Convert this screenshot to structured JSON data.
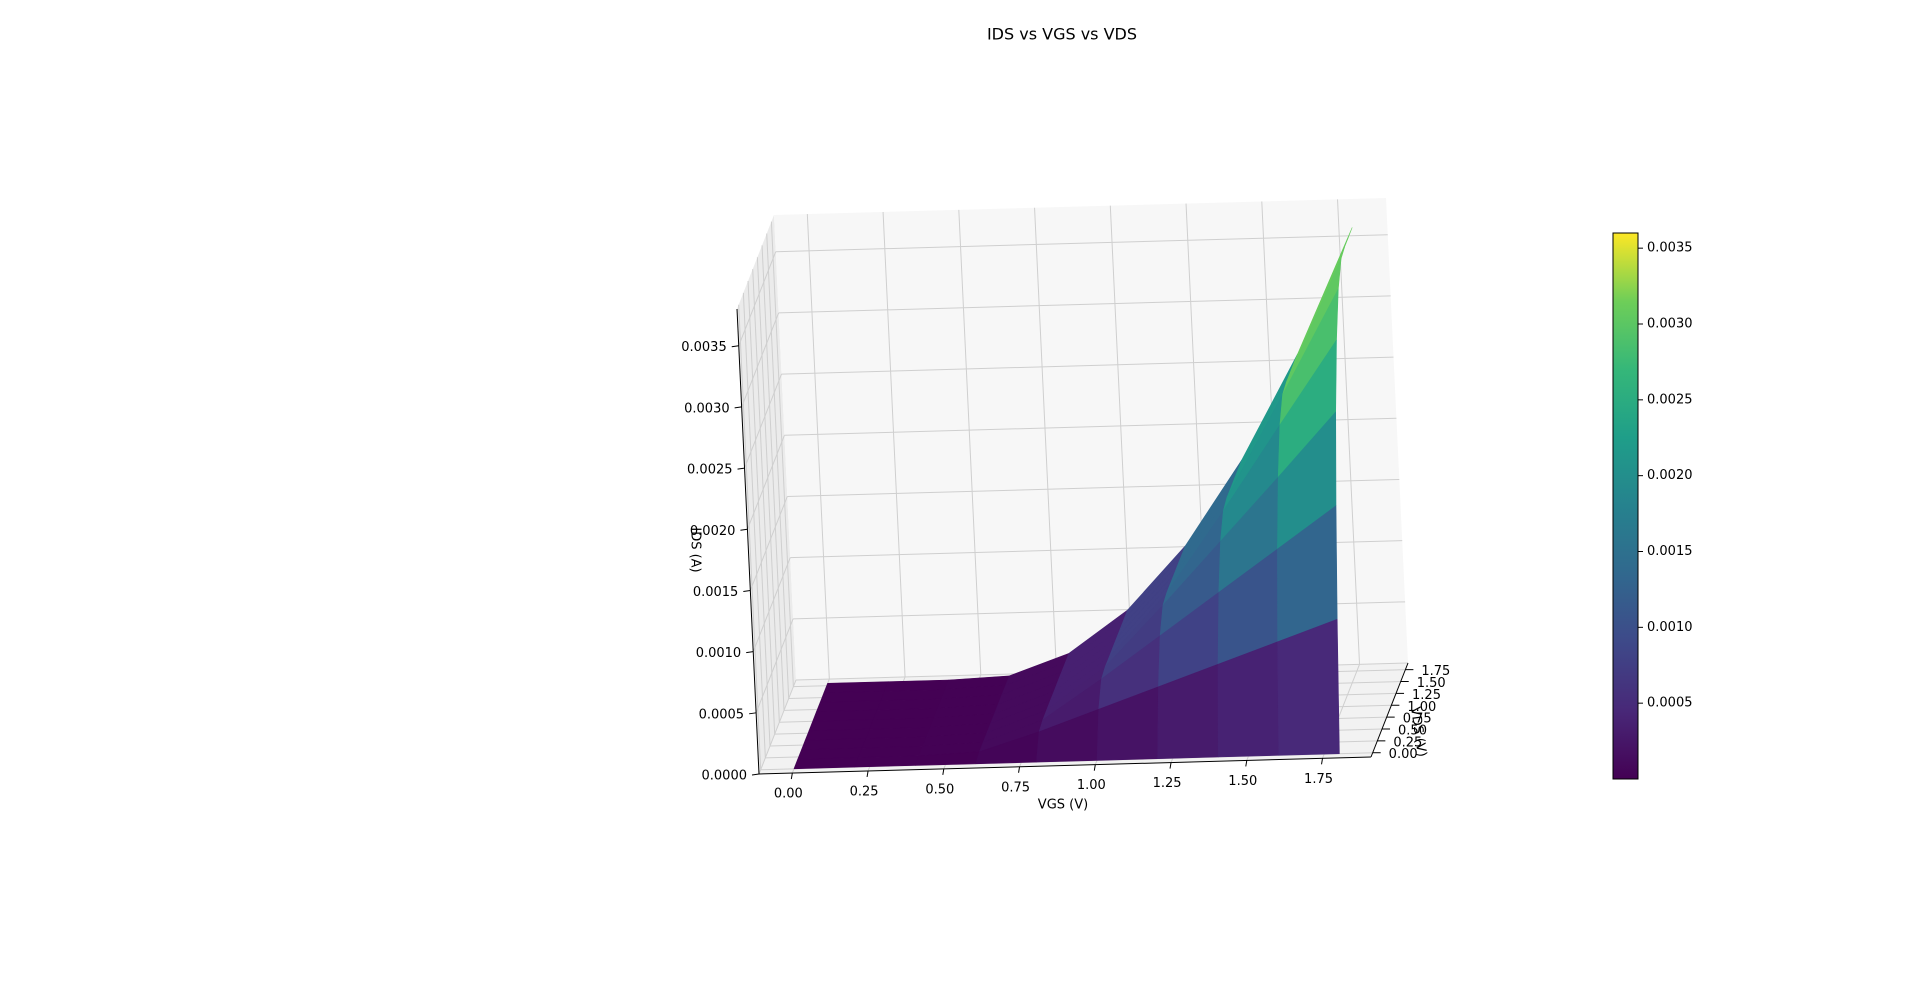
{
  "chart_data": {
    "type": "surface",
    "title": "IDS vs VGS vs VDS",
    "x_label": "VGS (V)",
    "y_label": "VDS (V)",
    "z_label": "IDS (A)",
    "x": [
      0,
      0.2,
      0.4,
      0.6,
      0.8,
      1.0,
      1.2,
      1.4,
      1.6,
      1.8
    ],
    "y": [
      0,
      0.2,
      0.4,
      0.6,
      0.8,
      1.0,
      1.2,
      1.4,
      1.6,
      1.8
    ],
    "z": [
      [
        0,
        0,
        0,
        0,
        0,
        0,
        0,
        0,
        0,
        0
      ],
      [
        0,
        0,
        0,
        2e-05,
        0.00017,
        0.00034,
        0.00051,
        0.00068,
        0.00085,
        0.00102
      ],
      [
        0,
        0,
        0,
        2e-05,
        0.00019,
        0.00051,
        0.00085,
        0.00119,
        0.00153,
        0.00187
      ],
      [
        0,
        0,
        0,
        2e-05,
        0.00019,
        0.00053,
        0.00102,
        0.00153,
        0.00204,
        0.00256
      ],
      [
        0,
        0,
        0,
        2e-05,
        0.00019,
        0.00053,
        0.00104,
        0.0017,
        0.00239,
        0.00307
      ],
      [
        0,
        0,
        0,
        2e-05,
        0.00019,
        0.00053,
        0.00104,
        0.00173,
        0.00256,
        0.00341
      ],
      [
        0,
        0,
        0,
        2e-05,
        0.00019,
        0.00053,
        0.00104,
        0.00173,
        0.00258,
        0.00358
      ],
      [
        0,
        0,
        0,
        2e-05,
        0.00019,
        0.00053,
        0.00104,
        0.00173,
        0.00258,
        0.0036
      ],
      [
        0,
        0,
        0,
        2e-05,
        0.00019,
        0.00053,
        0.00104,
        0.00173,
        0.00258,
        0.0036
      ],
      [
        0,
        0,
        0,
        2e-05,
        0.00019,
        0.00053,
        0.00104,
        0.00173,
        0.00258,
        0.0036
      ]
    ],
    "colormap": "viridis",
    "xlim": [
      -0.11,
      1.91
    ],
    "ylim": [
      -0.09,
      1.89
    ],
    "zlim": [
      0,
      0.0038
    ],
    "xticks": [
      {
        "value": 0,
        "label": "0.00"
      },
      0.25,
      {
        "value": 0.5,
        "label": "0.50"
      },
      0.75,
      {
        "value": 1,
        "label": "1.00"
      },
      1.25,
      {
        "value": 1.5,
        "label": "1.50"
      },
      1.75
    ],
    "yticks": [
      {
        "value": 0,
        "label": "0.00"
      },
      0.25,
      {
        "value": 0.5,
        "label": "0.50"
      },
      0.75,
      {
        "value": 1,
        "label": "1.00"
      },
      1.25,
      {
        "value": 1.5,
        "label": "1.50"
      },
      1.75
    ],
    "zticks": [
      {
        "value": 0,
        "label": "0.0000"
      },
      0.0005,
      {
        "value": 0.001,
        "label": "0.0010"
      },
      0.0015,
      {
        "value": 0.002,
        "label": "0.0020"
      },
      0.0025,
      {
        "value": 0.003,
        "label": "0.0030"
      },
      0.0035
    ],
    "grid": true,
    "colorbar": {
      "lim": [
        0,
        0.0036
      ],
      "ticks": [
        0.0005,
        {
          "value": 0.001,
          "label": "0.0010"
        },
        0.0015,
        {
          "value": 0.002,
          "label": "0.0020"
        },
        0.0025,
        {
          "value": 0.003,
          "label": "0.0030"
        },
        0.0035
      ]
    }
  }
}
